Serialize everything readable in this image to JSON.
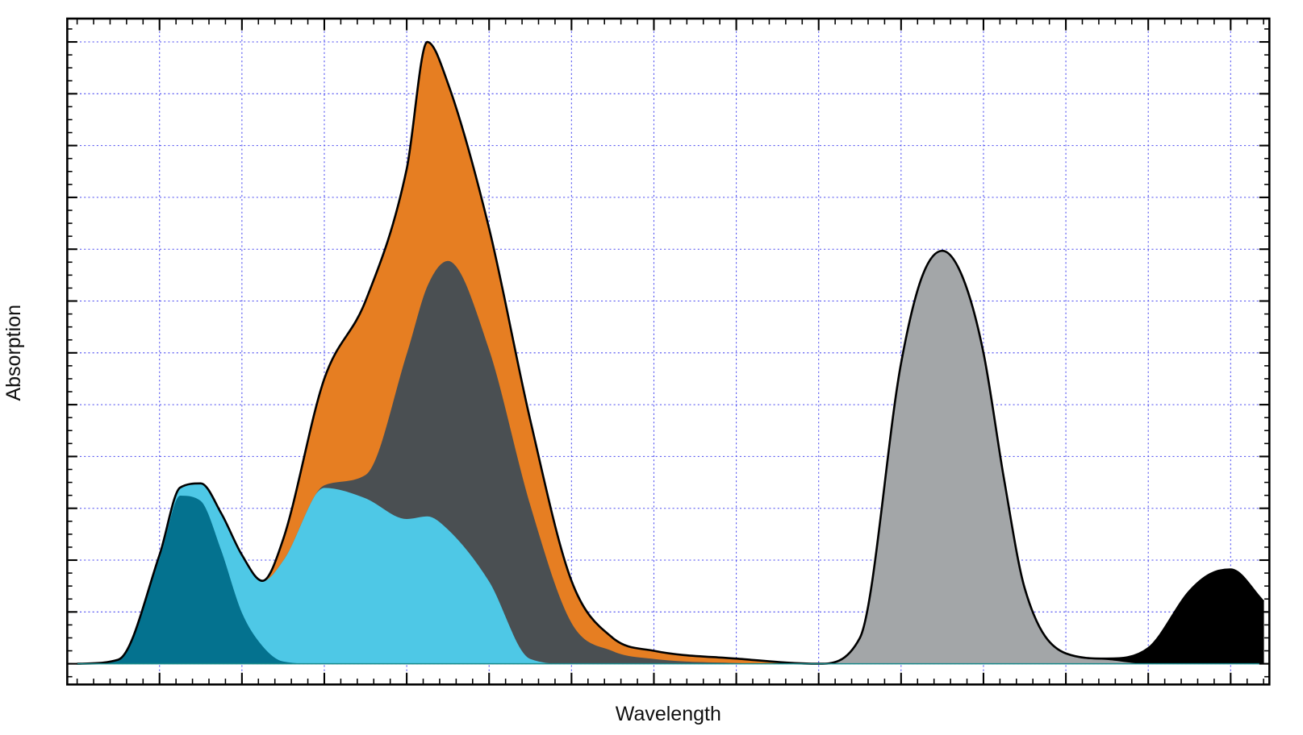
{
  "chart_data": {
    "type": "stacked_area",
    "x_label": "Wavelength",
    "y_label": "Absorption",
    "x": [
      0,
      0.5,
      1,
      1.25,
      1.5,
      1.75,
      2,
      2.25,
      2.5,
      3,
      3.5,
      4,
      4.25,
      4.5,
      5,
      5.5,
      6,
      6.5,
      7,
      8,
      9,
      9.5,
      10,
      10.25,
      10.5,
      10.75,
      11,
      11.25,
      11.5,
      12,
      12.5,
      13,
      13.5,
      13.75,
      14,
      14.4
    ],
    "series": [
      {
        "color": "#04728f",
        "values": [
          0,
          0.08,
          2.05,
          3.25,
          3.15,
          2.2,
          1.0,
          0.35,
          0.05,
          0,
          0,
          0,
          0,
          0,
          0,
          0,
          0,
          0,
          0,
          0,
          0,
          0,
          0,
          0,
          0,
          0,
          0,
          0,
          0,
          0,
          0,
          0,
          0,
          0,
          0,
          0
        ]
      },
      {
        "color": "#4ec8e6",
        "values": [
          0,
          0,
          0.05,
          0.15,
          0.33,
          0.7,
          1.1,
          1.25,
          1.95,
          3.4,
          3.2,
          2.8,
          2.85,
          2.6,
          1.6,
          0.1,
          0,
          0,
          0,
          0,
          0,
          0,
          0,
          0,
          0,
          0,
          0,
          0,
          0,
          0,
          0,
          0,
          0,
          0,
          0,
          0
        ]
      },
      {
        "color": "#4a4f52",
        "values": [
          0,
          0,
          0,
          0,
          0,
          0,
          0,
          0,
          0,
          0.05,
          0.45,
          3.2,
          4.45,
          5.18,
          4.48,
          2.98,
          0.8,
          0.25,
          0.1,
          0.02,
          0,
          0,
          0,
          0,
          0,
          0,
          0,
          0,
          0,
          0,
          0,
          0,
          0,
          0,
          0,
          0
        ]
      },
      {
        "color": "#e67e22",
        "values": [
          0,
          0,
          0,
          0,
          0,
          0,
          0,
          0,
          0.4,
          2.05,
          3.35,
          3.55,
          4.7,
          3.42,
          2.32,
          1.62,
          0.8,
          0.25,
          0.15,
          0.08,
          0,
          0,
          0,
          0,
          0,
          0,
          0,
          0,
          0,
          0,
          0,
          0,
          0,
          0,
          0,
          0
        ]
      },
      {
        "color": "#a3a6a8",
        "values": [
          0,
          0,
          0,
          0,
          0,
          0,
          0,
          0,
          0,
          0,
          0,
          0,
          0,
          0,
          0,
          0,
          0,
          0,
          0,
          0,
          0,
          0.5,
          5.8,
          7.45,
          7.97,
          7.45,
          6.0,
          3.56,
          1.46,
          0.2,
          0.08,
          0,
          0,
          0,
          0,
          0
        ]
      },
      {
        "color": "#000000",
        "values": [
          0,
          0,
          0,
          0,
          0,
          0,
          0,
          0,
          0,
          0,
          0,
          0,
          0,
          0,
          0,
          0,
          0,
          0,
          0,
          0,
          0,
          0,
          0,
          0,
          0,
          0,
          0,
          0,
          0,
          0,
          0.02,
          0.3,
          1.4,
          1.73,
          1.82,
          1.2
        ]
      }
    ],
    "xlim": [
      -0.12,
      14.47
    ],
    "ylim": [
      -0.4,
      12.45
    ],
    "xticks": [
      1,
      2,
      3,
      4,
      5,
      6,
      7,
      8,
      9,
      10,
      11,
      12,
      13,
      14
    ],
    "yticks": [
      0,
      1,
      2,
      3,
      4,
      5,
      6,
      7,
      8,
      9,
      10,
      11,
      12
    ],
    "grid": true,
    "grid_color": "#4a4af0",
    "outline_color": "#000000"
  }
}
